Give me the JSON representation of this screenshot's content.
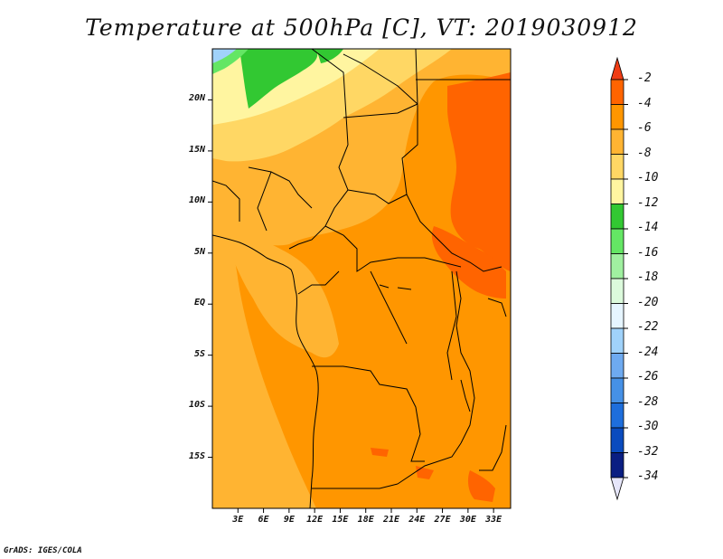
{
  "title": "Temperature at 500hPa [C], VT: 2019030912",
  "footer": "GrADS: IGES/COLA",
  "axes": {
    "y_ticks": [
      {
        "label": "20N",
        "lat": 20
      },
      {
        "label": "15N",
        "lat": 15
      },
      {
        "label": "10N",
        "lat": 10
      },
      {
        "label": "5N",
        "lat": 5
      },
      {
        "label": "EQ",
        "lat": 0
      },
      {
        "label": "5S",
        "lat": -5
      },
      {
        "label": "10S",
        "lat": -10
      },
      {
        "label": "15S",
        "lat": -15
      }
    ],
    "x_ticks": [
      {
        "label": "3E",
        "lon": 3
      },
      {
        "label": "6E",
        "lon": 6
      },
      {
        "label": "9E",
        "lon": 9
      },
      {
        "label": "12E",
        "lon": 12
      },
      {
        "label": "15E",
        "lon": 15
      },
      {
        "label": "18E",
        "lon": 18
      },
      {
        "label": "21E",
        "lon": 21
      },
      {
        "label": "24E",
        "lon": 24
      },
      {
        "label": "27E",
        "lon": 27
      },
      {
        "label": "30E",
        "lon": 30
      },
      {
        "label": "33E",
        "lon": 33
      }
    ],
    "lon_range": [
      0,
      35
    ],
    "lat_range": [
      -20,
      25
    ]
  },
  "colorbar": {
    "labels": [
      "-2",
      "-4",
      "-6",
      "-8",
      "-10",
      "-12",
      "-14",
      "-16",
      "-18",
      "-20",
      "-22",
      "-24",
      "-26",
      "-28",
      "-30",
      "-32",
      "-34"
    ],
    "colors": [
      "#f03c14",
      "#ff6400",
      "#ff9600",
      "#ffb432",
      "#ffd764",
      "#fff5a0",
      "#32c832",
      "#64e664",
      "#a0f0a0",
      "#dcfadc",
      "#e6f5ff",
      "#a0d2fa",
      "#6eaaf0",
      "#4691e6",
      "#1e6edc",
      "#0a4bbe",
      "#0a1e82",
      "#00107a"
    ],
    "top_color": "#f03c14",
    "bottom_color": "#e6e6fa"
  }
}
